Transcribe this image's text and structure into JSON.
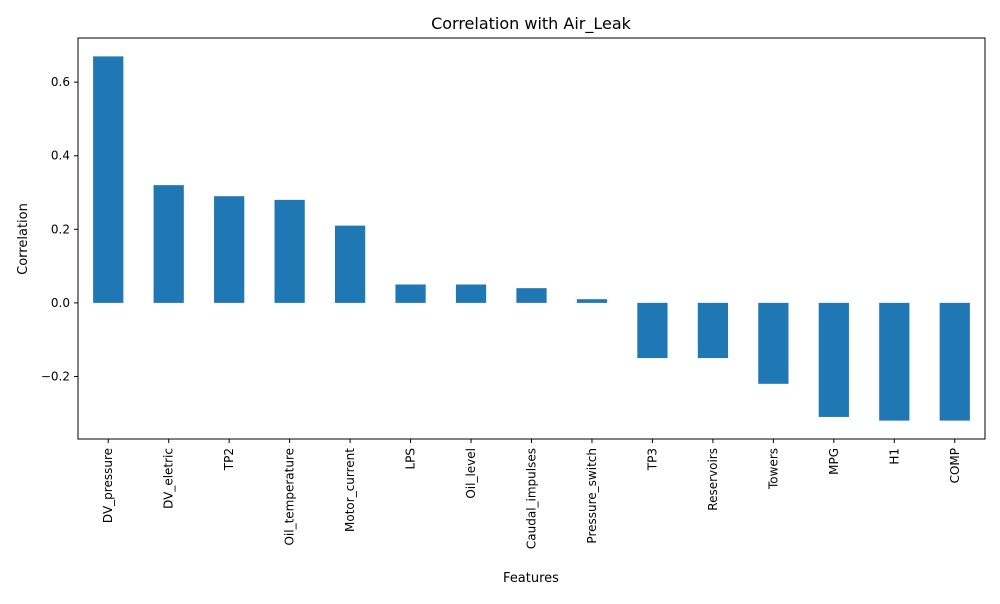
{
  "chart_data": {
    "type": "bar",
    "title": "Correlation with Air_Leak",
    "xlabel": "Features",
    "ylabel": "Correlation",
    "categories": [
      "DV_pressure",
      "DV_eletric",
      "TP2",
      "Oil_temperature",
      "Motor_current",
      "LPS",
      "Oil_level",
      "Caudal_impulses",
      "Pressure_switch",
      "TP3",
      "Reservoirs",
      "Towers",
      "MPG",
      "H1",
      "COMP"
    ],
    "values": [
      0.67,
      0.32,
      0.29,
      0.28,
      0.21,
      0.05,
      0.05,
      0.04,
      0.01,
      -0.15,
      -0.15,
      -0.22,
      -0.31,
      -0.32,
      -0.32
    ],
    "ylim": [
      -0.37,
      0.72
    ],
    "yticks": [
      -0.2,
      0.0,
      0.2,
      0.4,
      0.6
    ],
    "ytick_labels": [
      "−0.2",
      "0.0",
      "0.2",
      "0.4",
      "0.6"
    ],
    "grid": false,
    "bar_color": "#1f77b4"
  }
}
